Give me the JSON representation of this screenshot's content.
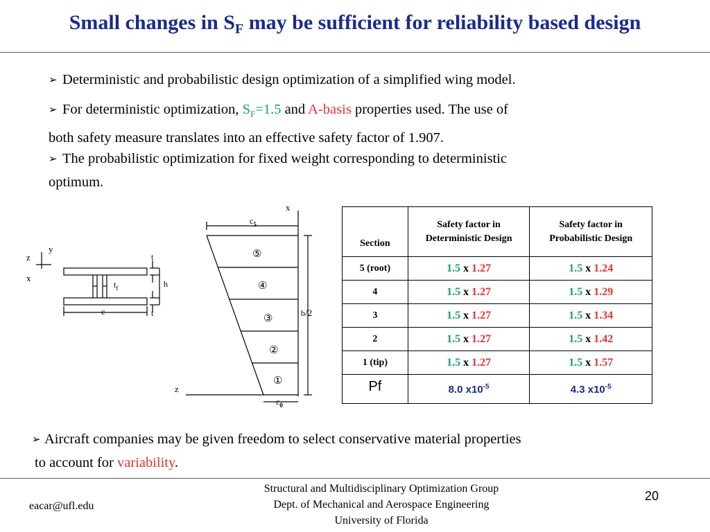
{
  "title": {
    "pre": "Small changes in S",
    "sub": "F",
    "post": " may be sufficient for reliability based design"
  },
  "bullets": {
    "b1": "Deterministic and probabilistic design optimization of a simplified wing model.",
    "b2_pre": "For deterministic optimization, ",
    "b2_sf": "S",
    "b2_sf_sub": "F",
    "b2_sf_val": "=1.5",
    "b2_and": " and ",
    "b2_abasis": "A-basis",
    "b2_post": " properties used. The use of",
    "b2_line2": "both safety measure translates into an effective safety factor of 1.907.",
    "b3_line1": "The probabilistic optimization for fixed weight corresponding to deterministic",
    "b3_line2": "optimum.",
    "b4_line1": "Aircraft companies may be given freedom to select conservative material properties",
    "b4_pre": "to account for ",
    "b4_var": "variability",
    "b4_end": "."
  },
  "cross_section": {
    "y": "y",
    "z": "z",
    "x": "x",
    "t_top": "t",
    "t_bottom": "t",
    "h": "h",
    "tf": "t",
    "tf_sub": "f",
    "c": "c"
  },
  "wing": {
    "x": "x",
    "z": "z",
    "c5": "c",
    "c5_sub": "5",
    "c0": "c",
    "c0_sub": "0",
    "b2_b": "b",
    "b2_rest": "/2",
    "s5": "⑤",
    "s4": "④",
    "s3": "③",
    "s2": "②",
    "s1": "①"
  },
  "table": {
    "headers": [
      "Section",
      "Safety factor in Deterministic Design",
      "Safety factor in Probabilistic Design"
    ],
    "rows": [
      {
        "section": "5 (root)",
        "det_a": "1.5",
        "det_x": " x ",
        "det_b": "1.27",
        "prob_a": "1.5",
        "prob_x": " x ",
        "prob_b": "1.24"
      },
      {
        "section": "4",
        "det_a": "1.5",
        "det_x": " x ",
        "det_b": "1.27",
        "prob_a": "1.5",
        "prob_x": " x ",
        "prob_b": "1.29"
      },
      {
        "section": "3",
        "det_a": "1.5",
        "det_x": " x ",
        "det_b": "1.27",
        "prob_a": "1.5",
        "prob_x": " x ",
        "prob_b": "1.34"
      },
      {
        "section": "2",
        "det_a": "1.5",
        "det_x": " x ",
        "det_b": "1.27",
        "prob_a": "1.5",
        "prob_x": " x ",
        "prob_b": "1.42"
      },
      {
        "section": "1 (tip)",
        "det_a": "1.5",
        "det_x": " x ",
        "det_b": "1.27",
        "prob_a": "1.5",
        "prob_x": " x ",
        "prob_b": "1.57"
      }
    ],
    "pf_label": "Pf",
    "pf_det_base": "8.0 x10",
    "pf_det_exp": "-5",
    "pf_prob_base": "4.3 x10",
    "pf_prob_exp": "-5"
  },
  "colors": {
    "title": "#1a2a8e",
    "green": "#1a9a7a",
    "red": "#e63232"
  },
  "footer": {
    "email": "eacar@ufl.edu",
    "line1": "Structural and Multidisciplinary Optimization Group",
    "line2": "Dept. of Mechanical and Aerospace Engineering",
    "line3": "University of Florida",
    "page": "20"
  }
}
